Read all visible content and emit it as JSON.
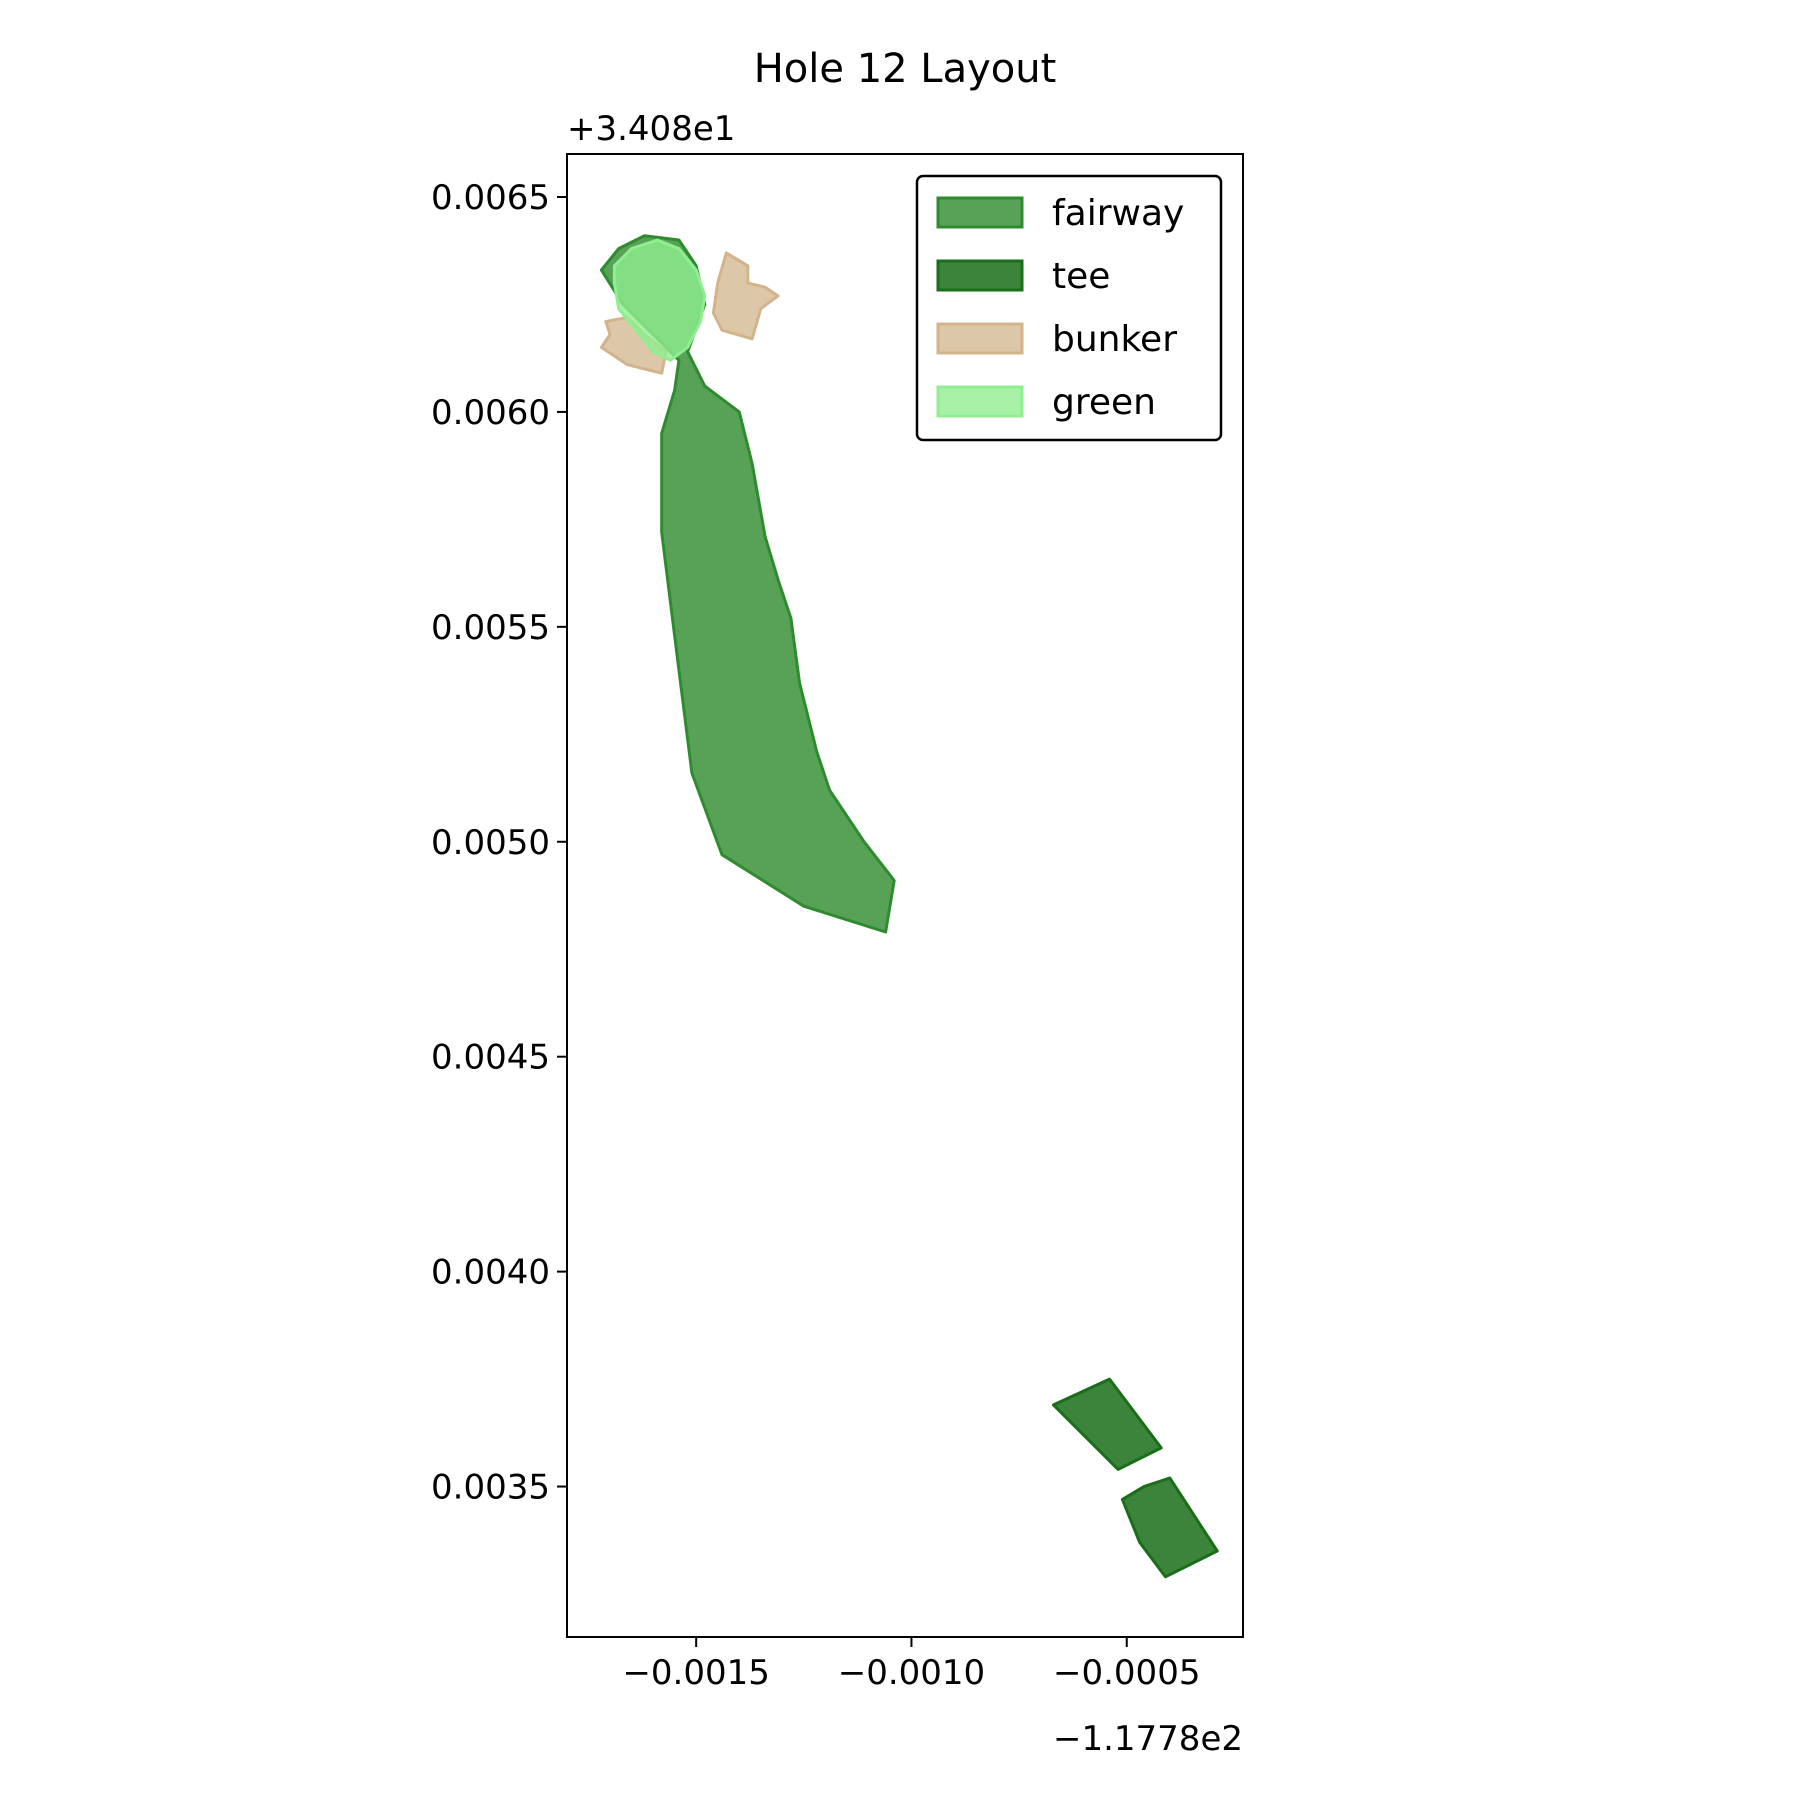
{
  "chart_data": {
    "type": "map",
    "title": "Hole 12 Layout",
    "xlabel": "",
    "ylabel": "",
    "x_offset_label": "−1.1778e2",
    "y_offset_label": "+3.408e1",
    "xlim": [
      -0.0018,
      -0.00023
    ],
    "ylim": [
      0.00315,
      0.0066
    ],
    "x_ticks": [
      -0.0015,
      -0.001,
      -0.0005
    ],
    "x_tick_labels": [
      "−0.0015",
      "−0.0010",
      "−0.0005"
    ],
    "y_ticks": [
      0.0035,
      0.004,
      0.0045,
      0.005,
      0.0055,
      0.006,
      0.0065
    ],
    "y_tick_labels": [
      "0.0035",
      "0.0040",
      "0.0045",
      "0.0050",
      "0.0055",
      "0.0060",
      "0.0065"
    ],
    "grid": false,
    "legend_position": "upper right",
    "series": [
      {
        "name": "fairway",
        "fill": "#2e8b2e",
        "stroke": "#2e8b2e",
        "fill_opacity": 0.8,
        "polygons": [
          [
            [
              -0.00172,
              0.00633
            ],
            [
              -0.00168,
              0.00638
            ],
            [
              -0.00162,
              0.00641
            ],
            [
              -0.00154,
              0.0064
            ],
            [
              -0.0015,
              0.00634
            ],
            [
              -0.00148,
              0.00625
            ],
            [
              -0.00152,
              0.00614
            ],
            [
              -0.00148,
              0.00606
            ],
            [
              -0.0014,
              0.006
            ],
            [
              -0.00137,
              0.00588
            ],
            [
              -0.00134,
              0.00571
            ],
            [
              -0.00131,
              0.00561
            ],
            [
              -0.00128,
              0.00552
            ],
            [
              -0.00126,
              0.00537
            ],
            [
              -0.00122,
              0.00521
            ],
            [
              -0.00119,
              0.00512
            ],
            [
              -0.00111,
              0.005
            ],
            [
              -0.00104,
              0.00491
            ],
            [
              -0.00106,
              0.00479
            ],
            [
              -0.00125,
              0.00485
            ],
            [
              -0.00144,
              0.00497
            ],
            [
              -0.00151,
              0.00516
            ],
            [
              -0.00154,
              0.0054
            ],
            [
              -0.00158,
              0.00572
            ],
            [
              -0.00158,
              0.00595
            ],
            [
              -0.00155,
              0.00605
            ],
            [
              -0.00154,
              0.00612
            ],
            [
              -0.0016,
              0.00618
            ],
            [
              -0.00167,
              0.00625
            ]
          ]
        ]
      },
      {
        "name": "tee",
        "fill": "#1a6e1a",
        "stroke": "#1a6e1a",
        "fill_opacity": 0.85,
        "polygons": [
          [
            [
              -0.00067,
              0.00369
            ],
            [
              -0.00054,
              0.00375
            ],
            [
              -0.00042,
              0.00359
            ],
            [
              -0.00052,
              0.00354
            ]
          ],
          [
            [
              -0.00051,
              0.00347
            ],
            [
              -0.00046,
              0.0035
            ],
            [
              -0.0004,
              0.00352
            ],
            [
              -0.00029,
              0.00335
            ],
            [
              -0.00041,
              0.00329
            ],
            [
              -0.00047,
              0.00337
            ]
          ]
        ]
      },
      {
        "name": "bunker",
        "fill": "#d2b48c",
        "stroke": "#d2b48c",
        "fill_opacity": 0.75,
        "polygons": [
          [
            [
              -0.00143,
              0.00637
            ],
            [
              -0.00138,
              0.00634
            ],
            [
              -0.00138,
              0.0063
            ],
            [
              -0.00134,
              0.00629
            ],
            [
              -0.00131,
              0.00627
            ],
            [
              -0.00135,
              0.00624
            ],
            [
              -0.00137,
              0.00617
            ],
            [
              -0.00144,
              0.00619
            ],
            [
              -0.00146,
              0.00623
            ],
            [
              -0.00145,
              0.0063
            ]
          ],
          [
            [
              -0.00171,
              0.00621
            ],
            [
              -0.00166,
              0.00622
            ],
            [
              -0.00162,
              0.00618
            ],
            [
              -0.00157,
              0.00614
            ],
            [
              -0.00158,
              0.00609
            ],
            [
              -0.00166,
              0.00611
            ],
            [
              -0.00172,
              0.00615
            ],
            [
              -0.0017,
              0.00618
            ]
          ]
        ]
      },
      {
        "name": "green",
        "fill": "#90ee90",
        "stroke": "#90ee90",
        "fill_opacity": 0.8,
        "polygons": [
          [
            [
              -0.00169,
              0.00634
            ],
            [
              -0.00165,
              0.00638
            ],
            [
              -0.00159,
              0.0064
            ],
            [
              -0.00154,
              0.00638
            ],
            [
              -0.0015,
              0.00633
            ],
            [
              -0.00148,
              0.00627
            ],
            [
              -0.00149,
              0.00621
            ],
            [
              -0.00152,
              0.00615
            ],
            [
              -0.00156,
              0.00612
            ],
            [
              -0.0016,
              0.00614
            ],
            [
              -0.00164,
              0.00619
            ],
            [
              -0.00168,
              0.00624
            ],
            [
              -0.00169,
              0.0063
            ]
          ]
        ]
      }
    ]
  }
}
